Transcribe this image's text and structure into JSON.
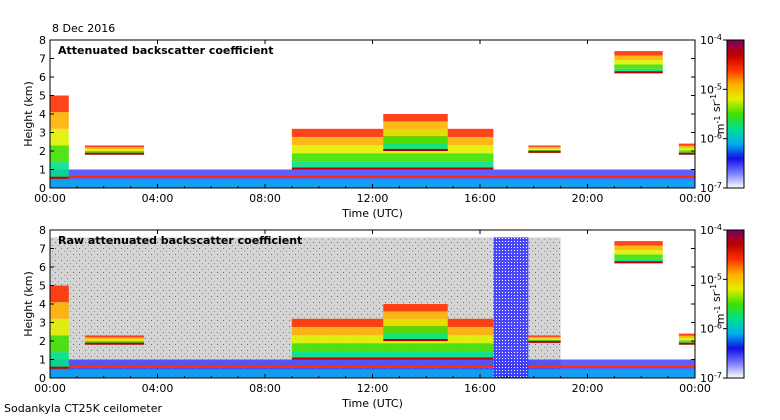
{
  "date_label": "8 Dec 2016",
  "instrument_label": "Sodankyla CT25K ceilometer",
  "chart_data": [
    {
      "type": "heatmap",
      "title": "Attenuated backscatter coefficient",
      "xlabel": "Time (UTC)",
      "ylabel": "Height (km)",
      "x_ticks": [
        "00:00",
        "04:00",
        "08:00",
        "12:00",
        "16:00",
        "20:00",
        "00:00"
      ],
      "xlim_hours": [
        0,
        24
      ],
      "y_ticks": [
        0,
        1,
        2,
        3,
        4,
        5,
        6,
        7,
        8
      ],
      "ylim": [
        0,
        8
      ],
      "colorbar": {
        "unit": "m-1 sr-1",
        "scale": "log",
        "ticks": [
          "10-4",
          "10-5",
          "10-6",
          "10-7"
        ],
        "range": [
          1e-07,
          0.0001
        ],
        "colors": [
          "#ffffff",
          "#7b7bff",
          "#1010e6",
          "#00b0f0",
          "#00e08a",
          "#40e000",
          "#e0f000",
          "#ffb000",
          "#ff3000",
          "#c00000",
          "#7a0060"
        ]
      },
      "features": [
        {
          "name": "boundary layer",
          "x_hours": [
            0,
            24
          ],
          "y_km": [
            0,
            1
          ]
        },
        {
          "name": "low cloud",
          "x_hours": [
            0,
            0.7
          ],
          "y_km": [
            0.5,
            5
          ]
        },
        {
          "name": "cloud layer",
          "x_hours": [
            1.3,
            3.5
          ],
          "y_km": [
            1.8,
            2.3
          ]
        },
        {
          "name": "cloud layer",
          "x_hours": [
            9,
            16.5
          ],
          "y_km": [
            1.0,
            3.2
          ]
        },
        {
          "name": "cloud layer",
          "x_hours": [
            12.4,
            14.8
          ],
          "y_km": [
            2.0,
            4.0
          ]
        },
        {
          "name": "cloud layer",
          "x_hours": [
            17.8,
            19.0
          ],
          "y_km": [
            1.9,
            2.3
          ]
        },
        {
          "name": "cloud layer",
          "x_hours": [
            21.0,
            22.8
          ],
          "y_km": [
            6.2,
            7.4
          ]
        },
        {
          "name": "cloud layer",
          "x_hours": [
            23.4,
            24
          ],
          "y_km": [
            1.8,
            2.4
          ]
        }
      ],
      "grid": false
    },
    {
      "type": "heatmap",
      "title": "Raw attenuated backscatter coefficient",
      "xlabel": "Time (UTC)",
      "ylabel": "Height (km)",
      "x_ticks": [
        "00:00",
        "04:00",
        "08:00",
        "12:00",
        "16:00",
        "20:00",
        "00:00"
      ],
      "xlim_hours": [
        0,
        24
      ],
      "y_ticks": [
        0,
        1,
        2,
        3,
        4,
        5,
        6,
        7,
        8
      ],
      "ylim": [
        0,
        8
      ],
      "colorbar": {
        "unit": "m-1 sr-1",
        "scale": "log",
        "ticks": [
          "10-4",
          "10-5",
          "10-6",
          "10-7"
        ],
        "range": [
          1e-07,
          0.0001
        ],
        "colors": [
          "#ffffff",
          "#7b7bff",
          "#1010e6",
          "#00b0f0",
          "#00e08a",
          "#40e000",
          "#e0f000",
          "#ffb000",
          "#ff3000",
          "#c00000",
          "#7a0060"
        ]
      },
      "noise_background": {
        "color": "#d4d4d4",
        "x_hours": [
          0,
          19.0
        ],
        "y_km": [
          0,
          7.6
        ]
      },
      "features": [
        {
          "name": "boundary layer",
          "x_hours": [
            0,
            24
          ],
          "y_km": [
            0,
            1
          ]
        },
        {
          "name": "low cloud",
          "x_hours": [
            0,
            0.7
          ],
          "y_km": [
            0.5,
            5
          ]
        },
        {
          "name": "cloud layer",
          "x_hours": [
            1.3,
            3.5
          ],
          "y_km": [
            1.8,
            2.3
          ]
        },
        {
          "name": "cloud layer",
          "x_hours": [
            9,
            16.5
          ],
          "y_km": [
            1.0,
            3.2
          ]
        },
        {
          "name": "cloud layer",
          "x_hours": [
            12.4,
            14.8
          ],
          "y_km": [
            2.0,
            4.0
          ]
        },
        {
          "name": "noise column",
          "x_hours": [
            16.5,
            17.8
          ],
          "y_km": [
            0,
            7.6
          ]
        },
        {
          "name": "cloud layer",
          "x_hours": [
            17.8,
            19.0
          ],
          "y_km": [
            1.9,
            2.3
          ]
        },
        {
          "name": "cloud layer",
          "x_hours": [
            21.0,
            22.8
          ],
          "y_km": [
            6.2,
            7.4
          ]
        },
        {
          "name": "cloud layer",
          "x_hours": [
            23.4,
            24
          ],
          "y_km": [
            1.8,
            2.4
          ]
        }
      ],
      "grid": false
    }
  ]
}
